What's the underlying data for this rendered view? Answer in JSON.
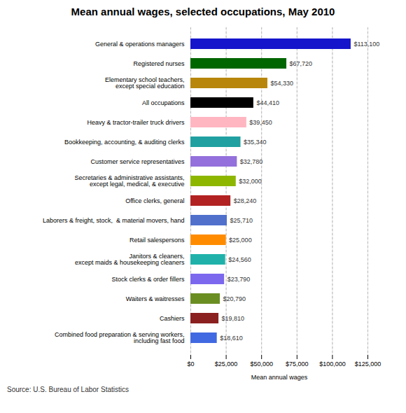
{
  "chart_data": {
    "type": "bar",
    "orientation": "horizontal",
    "title": "Mean annual wages, selected occupations, May 2010",
    "xlabel": "Mean annual wages",
    "annotations": [
      "Source: U.S. Bureau of Labor Statistics"
    ],
    "categories": [
      "General & operations managers",
      "Registered nurses",
      "Elementary school teachers,\nexcept special education",
      "All occupations",
      "Heavy & tractor-trailer truck drivers",
      "Bookkeeping, accounting, & auditing clerks",
      "Customer service representatives",
      "Secretaries & administrative assistants,\nexcept legal, medical, & executive",
      "Office clerks, general",
      "Laborers & freight, stock,  & material movers, hand",
      "Retail salespersons",
      "Janitors & cleaners,\nexcept maids & housekeeping cleaners",
      "Stock clerks & order fillers",
      "Waiters & waitresses",
      "Cashiers",
      "Combined food preparation & serving workers,\nincluding fast food"
    ],
    "values": [
      113100,
      67720,
      54330,
      44410,
      39450,
      35340,
      32780,
      32000,
      28240,
      25710,
      25000,
      24560,
      23790,
      20790,
      19810,
      18610
    ],
    "value_labels": [
      "$113,100",
      "$67,720",
      "$54,330",
      "$44,410",
      "$39,450",
      "$35,340",
      "$32,780",
      "$32,000",
      "$28,240",
      "$25,710",
      "$25,000",
      "$24,560",
      "$23,790",
      "$20,790",
      "$19,810",
      "$18,610"
    ],
    "colors": [
      "#1515CC",
      "#006600",
      "#B8860B",
      "#000000",
      "#FFB6C1",
      "#20A0A0",
      "#9370DB",
      "#8DB600",
      "#B22222",
      "#5070CC",
      "#FF8C00",
      "#20B2AA",
      "#7B68EE",
      "#6B8E23",
      "#8B2020",
      "#4169E1"
    ],
    "xlim": [
      0,
      125000
    ],
    "xticks": [
      {
        "value": 0,
        "label": "$0"
      },
      {
        "value": 25000,
        "label": "$25,000"
      },
      {
        "value": 50000,
        "label": "$50,000"
      },
      {
        "value": 75000,
        "label": "$75,000"
      },
      {
        "value": 100000,
        "label": "$100,000"
      },
      {
        "value": 125000,
        "label": "$125,000"
      }
    ],
    "grid": true,
    "data_labels": true
  }
}
